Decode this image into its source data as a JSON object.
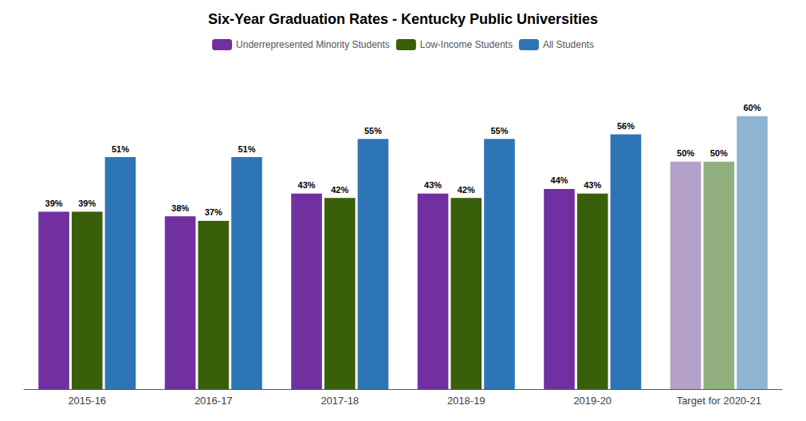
{
  "chart_data": {
    "type": "bar",
    "title": "Six-Year Graduation Rates - Kentucky Public Universities",
    "categories": [
      "2015-16",
      "2016-17",
      "2017-18",
      "2018-19",
      "2019-20",
      "Target for 2020-21"
    ],
    "series": [
      {
        "name": "Underrepresented Minority Students",
        "color": "#7030A0",
        "colors": [
          "#7030A0",
          "#7030A0",
          "#7030A0",
          "#7030A0",
          "#7030A0",
          "#B4A0C8"
        ],
        "values": [
          39,
          38,
          43,
          43,
          44,
          50
        ],
        "value_labels": [
          "39%",
          "38%",
          "43%",
          "43%",
          "44%",
          "50%"
        ]
      },
      {
        "name": "Low-Income Students",
        "color": "#3A5F0B",
        "colors": [
          "#3A5F0B",
          "#3A5F0B",
          "#3A5F0B",
          "#3A5F0B",
          "#3A5F0B",
          "#8FAF7E"
        ],
        "values": [
          39,
          37,
          42,
          42,
          43,
          50
        ],
        "value_labels": [
          "39%",
          "37%",
          "42%",
          "42%",
          "43%",
          "50%"
        ]
      },
      {
        "name": "All Students",
        "color": "#2E75B6",
        "colors": [
          "#2E75B6",
          "#2E75B6",
          "#2E75B6",
          "#2E75B6",
          "#2E75B6",
          "#8EB4D3"
        ],
        "values": [
          51,
          51,
          55,
          55,
          56,
          60
        ],
        "value_labels": [
          "51%",
          "51%",
          "55%",
          "55%",
          "56%",
          "60%"
        ]
      }
    ],
    "ylim": [
      0,
      68
    ],
    "grid": false,
    "legend": "top",
    "data_labels": true,
    "tick_labels": "x"
  }
}
